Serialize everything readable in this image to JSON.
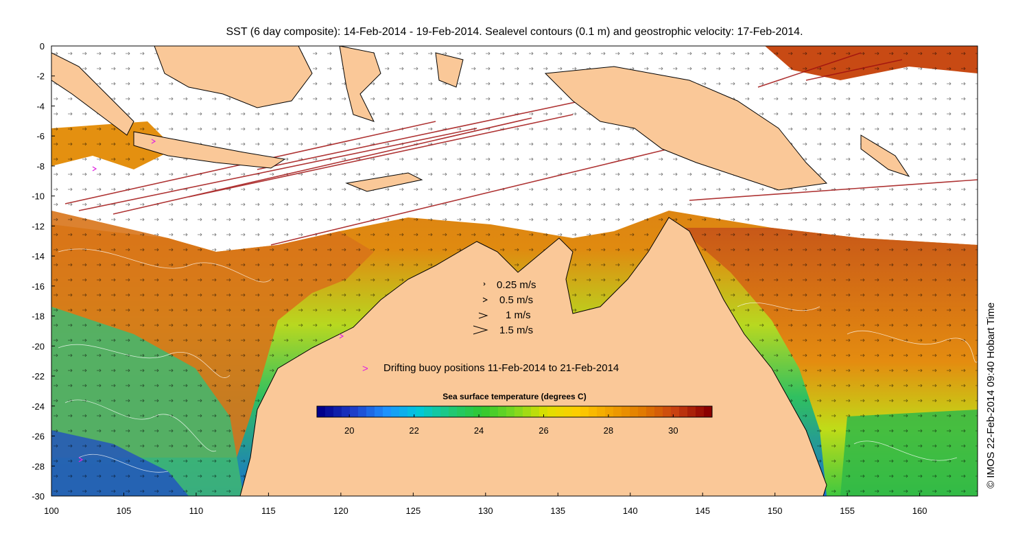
{
  "title": "SST (6 day composite): 14-Feb-2014 - 19-Feb-2014. Sealevel contours (0.1 m) and geostrophic velocity: 17-Feb-2014.",
  "credit": "© IMOS 22-Feb-2014 09:40 Hobart Time",
  "colors": {
    "land": "#fac898",
    "cloud": "#ffffff",
    "coast": "#000000",
    "vectors": "#000000",
    "contours": "#ffffff",
    "buoy": "#e020e0",
    "track": "#a01010"
  },
  "map": {
    "lon_range": [
      100,
      164
    ],
    "lat_range": [
      -30,
      0
    ],
    "x_ticks": [
      "100",
      "105",
      "110",
      "115",
      "120",
      "125",
      "130",
      "135",
      "140",
      "145",
      "150",
      "155",
      "160"
    ],
    "y_ticks": [
      "0",
      "-2",
      "-4",
      "-6",
      "-8",
      "-10",
      "-12",
      "-14",
      "-16",
      "-18",
      "-20",
      "-22",
      "-24",
      "-26",
      "-28",
      "-30"
    ]
  },
  "velocity_legend": [
    {
      "speed": 0.25,
      "label": "0.25 m/s"
    },
    {
      "speed": 0.5,
      "label": "0.5 m/s"
    },
    {
      "speed": 1,
      "label": "1 m/s"
    },
    {
      "speed": 1.5,
      "label": "1.5 m/s"
    }
  ],
  "buoy_legend": {
    "symbol": ">",
    "label": "Drifting buoy positions 11-Feb-2014 to 21-Feb-2014"
  },
  "colorbar": {
    "title": "Sea surface temperature (degrees C)",
    "range": [
      19,
      31.2
    ],
    "ticks": [
      "20",
      "22",
      "24",
      "26",
      "28",
      "30"
    ],
    "stops": [
      "#00008b",
      "#1e3cc8",
      "#1e90ff",
      "#00c8dc",
      "#20c878",
      "#30c830",
      "#7cd820",
      "#e0e000",
      "#ffcc00",
      "#f0a000",
      "#e07800",
      "#c84010",
      "#8b0000"
    ]
  }
}
